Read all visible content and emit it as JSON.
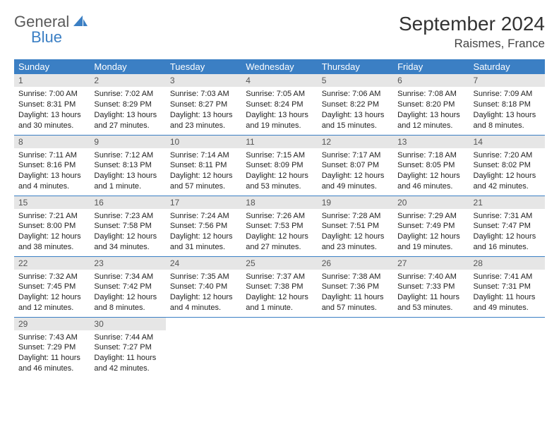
{
  "logo": {
    "general": "General",
    "blue": "Blue"
  },
  "title": "September 2024",
  "location": "Raismes, France",
  "colors": {
    "header_bg": "#3b7fc4",
    "header_text": "#ffffff",
    "daynum_bg": "#e6e6e6",
    "row_divider": "#3b7fc4",
    "logo_general": "#5a5a5a",
    "logo_blue": "#3b7fc4"
  },
  "weekdays": [
    "Sunday",
    "Monday",
    "Tuesday",
    "Wednesday",
    "Thursday",
    "Friday",
    "Saturday"
  ],
  "days": [
    {
      "n": "1",
      "sunrise": "7:00 AM",
      "sunset": "8:31 PM",
      "daylight": "13 hours and 30 minutes."
    },
    {
      "n": "2",
      "sunrise": "7:02 AM",
      "sunset": "8:29 PM",
      "daylight": "13 hours and 27 minutes."
    },
    {
      "n": "3",
      "sunrise": "7:03 AM",
      "sunset": "8:27 PM",
      "daylight": "13 hours and 23 minutes."
    },
    {
      "n": "4",
      "sunrise": "7:05 AM",
      "sunset": "8:24 PM",
      "daylight": "13 hours and 19 minutes."
    },
    {
      "n": "5",
      "sunrise": "7:06 AM",
      "sunset": "8:22 PM",
      "daylight": "13 hours and 15 minutes."
    },
    {
      "n": "6",
      "sunrise": "7:08 AM",
      "sunset": "8:20 PM",
      "daylight": "13 hours and 12 minutes."
    },
    {
      "n": "7",
      "sunrise": "7:09 AM",
      "sunset": "8:18 PM",
      "daylight": "13 hours and 8 minutes."
    },
    {
      "n": "8",
      "sunrise": "7:11 AM",
      "sunset": "8:16 PM",
      "daylight": "13 hours and 4 minutes."
    },
    {
      "n": "9",
      "sunrise": "7:12 AM",
      "sunset": "8:13 PM",
      "daylight": "13 hours and 1 minute."
    },
    {
      "n": "10",
      "sunrise": "7:14 AM",
      "sunset": "8:11 PM",
      "daylight": "12 hours and 57 minutes."
    },
    {
      "n": "11",
      "sunrise": "7:15 AM",
      "sunset": "8:09 PM",
      "daylight": "12 hours and 53 minutes."
    },
    {
      "n": "12",
      "sunrise": "7:17 AM",
      "sunset": "8:07 PM",
      "daylight": "12 hours and 49 minutes."
    },
    {
      "n": "13",
      "sunrise": "7:18 AM",
      "sunset": "8:05 PM",
      "daylight": "12 hours and 46 minutes."
    },
    {
      "n": "14",
      "sunrise": "7:20 AM",
      "sunset": "8:02 PM",
      "daylight": "12 hours and 42 minutes."
    },
    {
      "n": "15",
      "sunrise": "7:21 AM",
      "sunset": "8:00 PM",
      "daylight": "12 hours and 38 minutes."
    },
    {
      "n": "16",
      "sunrise": "7:23 AM",
      "sunset": "7:58 PM",
      "daylight": "12 hours and 34 minutes."
    },
    {
      "n": "17",
      "sunrise": "7:24 AM",
      "sunset": "7:56 PM",
      "daylight": "12 hours and 31 minutes."
    },
    {
      "n": "18",
      "sunrise": "7:26 AM",
      "sunset": "7:53 PM",
      "daylight": "12 hours and 27 minutes."
    },
    {
      "n": "19",
      "sunrise": "7:28 AM",
      "sunset": "7:51 PM",
      "daylight": "12 hours and 23 minutes."
    },
    {
      "n": "20",
      "sunrise": "7:29 AM",
      "sunset": "7:49 PM",
      "daylight": "12 hours and 19 minutes."
    },
    {
      "n": "21",
      "sunrise": "7:31 AM",
      "sunset": "7:47 PM",
      "daylight": "12 hours and 16 minutes."
    },
    {
      "n": "22",
      "sunrise": "7:32 AM",
      "sunset": "7:45 PM",
      "daylight": "12 hours and 12 minutes."
    },
    {
      "n": "23",
      "sunrise": "7:34 AM",
      "sunset": "7:42 PM",
      "daylight": "12 hours and 8 minutes."
    },
    {
      "n": "24",
      "sunrise": "7:35 AM",
      "sunset": "7:40 PM",
      "daylight": "12 hours and 4 minutes."
    },
    {
      "n": "25",
      "sunrise": "7:37 AM",
      "sunset": "7:38 PM",
      "daylight": "12 hours and 1 minute."
    },
    {
      "n": "26",
      "sunrise": "7:38 AM",
      "sunset": "7:36 PM",
      "daylight": "11 hours and 57 minutes."
    },
    {
      "n": "27",
      "sunrise": "7:40 AM",
      "sunset": "7:33 PM",
      "daylight": "11 hours and 53 minutes."
    },
    {
      "n": "28",
      "sunrise": "7:41 AM",
      "sunset": "7:31 PM",
      "daylight": "11 hours and 49 minutes."
    },
    {
      "n": "29",
      "sunrise": "7:43 AM",
      "sunset": "7:29 PM",
      "daylight": "11 hours and 46 minutes."
    },
    {
      "n": "30",
      "sunrise": "7:44 AM",
      "sunset": "7:27 PM",
      "daylight": "11 hours and 42 minutes."
    }
  ],
  "labels": {
    "sunrise": "Sunrise: ",
    "sunset": "Sunset: ",
    "daylight": "Daylight: "
  },
  "layout": {
    "cols": 7,
    "rows": 5,
    "trailing_empty": 5
  }
}
